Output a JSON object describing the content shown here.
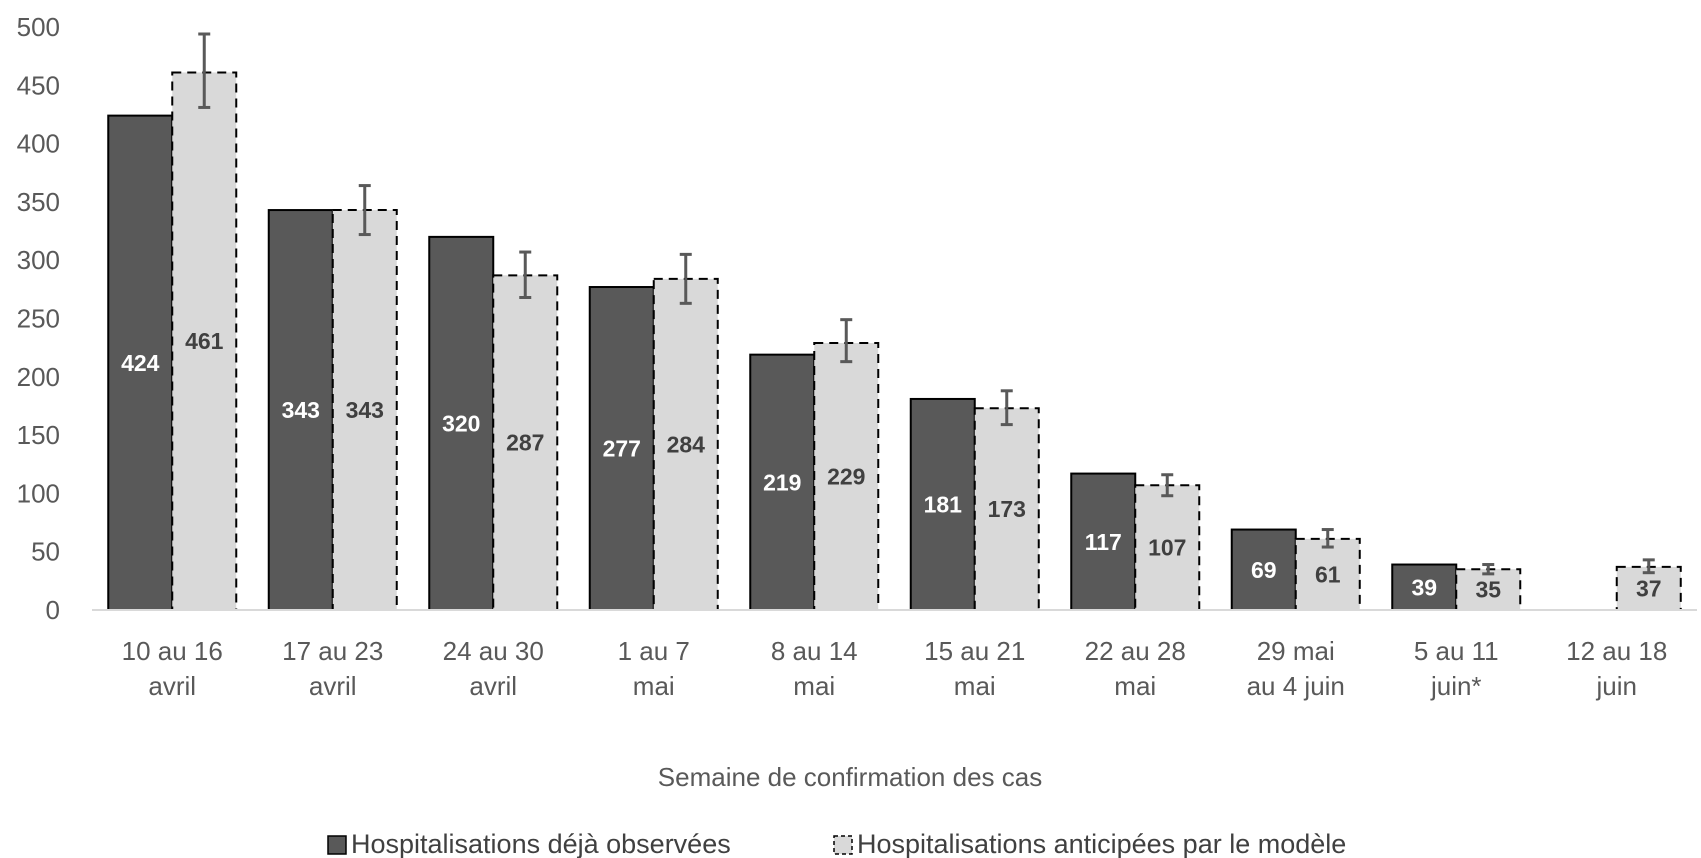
{
  "chart_data": {
    "type": "bar",
    "xlabel": "Semaine de confirmation des cas",
    "ylabel": "",
    "ylim": [
      0,
      500
    ],
    "y_ticks": [
      0,
      50,
      100,
      150,
      200,
      250,
      300,
      350,
      400,
      450,
      500
    ],
    "grid": false,
    "legend_position": "bottom",
    "categories": [
      [
        "10 au 16",
        "avril"
      ],
      [
        "17 au 23",
        "avril"
      ],
      [
        "24 au 30",
        "avril"
      ],
      [
        "1 au 7",
        "mai"
      ],
      [
        "8 au 14",
        "mai"
      ],
      [
        "15 au 21",
        "mai"
      ],
      [
        "22 au 28",
        "mai"
      ],
      [
        "29 mai",
        "au 4 juin"
      ],
      [
        "5 au 11",
        "juin*"
      ],
      [
        "12 au 18",
        "juin"
      ]
    ],
    "series": [
      {
        "name": "Hospitalisations déjà observées",
        "color": "#595959",
        "values": [
          424,
          343,
          320,
          277,
          219,
          181,
          117,
          69,
          39,
          null
        ],
        "labels": [
          "424",
          "343",
          "320",
          "277",
          "219",
          "181",
          "117",
          "69",
          "39",
          ""
        ],
        "label_color": "#ffffff"
      },
      {
        "name": "Hospitalisations anticipées par le modèle",
        "color": "#d9d9d9",
        "values": [
          461,
          343,
          287,
          284,
          229,
          173,
          107,
          61,
          35,
          37
        ],
        "labels": [
          "461",
          "343",
          "287",
          "284",
          "229",
          "173",
          "107",
          "61",
          "35",
          "37"
        ],
        "label_color": "#404040",
        "error_low": [
          431,
          322,
          268,
          263,
          213,
          159,
          98,
          54,
          31,
          32
        ],
        "error_high": [
          494,
          364,
          307,
          305,
          249,
          188,
          116,
          69,
          39,
          43
        ]
      }
    ]
  }
}
